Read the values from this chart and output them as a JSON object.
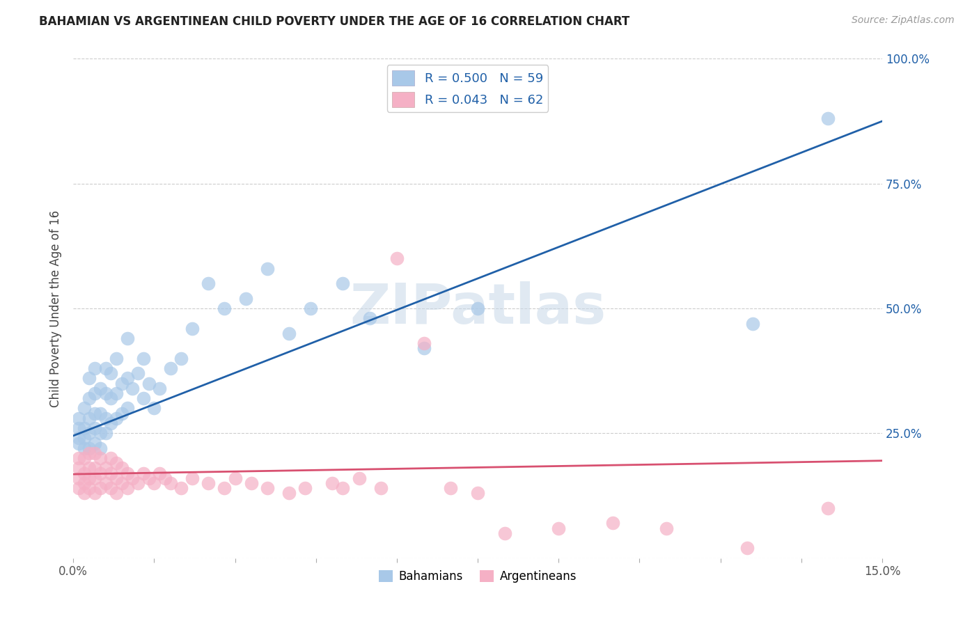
{
  "title": "BAHAMIAN VS ARGENTINEAN CHILD POVERTY UNDER THE AGE OF 16 CORRELATION CHART",
  "source": "Source: ZipAtlas.com",
  "ylabel": "Child Poverty Under the Age of 16",
  "xlim": [
    0.0,
    0.15
  ],
  "ylim": [
    0.0,
    1.0
  ],
  "xticks": [
    0.0,
    0.015,
    0.03,
    0.045,
    0.06,
    0.075,
    0.09,
    0.105,
    0.12,
    0.135,
    0.15
  ],
  "xtick_labels": [
    "0.0%",
    "",
    "",
    "",
    "",
    "",
    "",
    "",
    "",
    "",
    "15.0%"
  ],
  "ytick_vals": [
    0.0,
    0.25,
    0.5,
    0.75,
    1.0
  ],
  "ytick_labels_right": [
    "",
    "25.0%",
    "50.0%",
    "75.0%",
    "100.0%"
  ],
  "bahamian_color": "#a8c8e8",
  "argentinean_color": "#f5b0c5",
  "bahamian_line_color": "#2060a8",
  "argentinean_line_color": "#d85070",
  "watermark": "ZIPatlas",
  "bahamian_slope": 4.2,
  "bahamian_intercept": 0.245,
  "argentinean_slope": 0.18,
  "argentinean_intercept": 0.168,
  "blue_x": [
    0.001,
    0.001,
    0.001,
    0.001,
    0.002,
    0.002,
    0.002,
    0.002,
    0.003,
    0.003,
    0.003,
    0.003,
    0.003,
    0.004,
    0.004,
    0.004,
    0.004,
    0.004,
    0.005,
    0.005,
    0.005,
    0.005,
    0.006,
    0.006,
    0.006,
    0.006,
    0.007,
    0.007,
    0.007,
    0.008,
    0.008,
    0.008,
    0.009,
    0.009,
    0.01,
    0.01,
    0.01,
    0.011,
    0.012,
    0.013,
    0.013,
    0.014,
    0.015,
    0.016,
    0.018,
    0.02,
    0.022,
    0.025,
    0.028,
    0.032,
    0.036,
    0.04,
    0.044,
    0.05,
    0.055,
    0.065,
    0.075,
    0.126,
    0.14
  ],
  "blue_y": [
    0.23,
    0.24,
    0.26,
    0.28,
    0.22,
    0.24,
    0.26,
    0.3,
    0.22,
    0.25,
    0.28,
    0.32,
    0.36,
    0.23,
    0.26,
    0.29,
    0.33,
    0.38,
    0.22,
    0.25,
    0.29,
    0.34,
    0.25,
    0.28,
    0.33,
    0.38,
    0.27,
    0.32,
    0.37,
    0.28,
    0.33,
    0.4,
    0.29,
    0.35,
    0.3,
    0.36,
    0.44,
    0.34,
    0.37,
    0.32,
    0.4,
    0.35,
    0.3,
    0.34,
    0.38,
    0.4,
    0.46,
    0.55,
    0.5,
    0.52,
    0.58,
    0.45,
    0.5,
    0.55,
    0.48,
    0.42,
    0.5,
    0.47,
    0.88
  ],
  "pink_x": [
    0.001,
    0.001,
    0.001,
    0.001,
    0.002,
    0.002,
    0.002,
    0.002,
    0.003,
    0.003,
    0.003,
    0.003,
    0.004,
    0.004,
    0.004,
    0.004,
    0.005,
    0.005,
    0.005,
    0.006,
    0.006,
    0.007,
    0.007,
    0.007,
    0.008,
    0.008,
    0.008,
    0.009,
    0.009,
    0.01,
    0.01,
    0.011,
    0.012,
    0.013,
    0.014,
    0.015,
    0.016,
    0.017,
    0.018,
    0.02,
    0.022,
    0.025,
    0.028,
    0.03,
    0.033,
    0.036,
    0.04,
    0.043,
    0.048,
    0.05,
    0.053,
    0.057,
    0.06,
    0.065,
    0.07,
    0.075,
    0.08,
    0.09,
    0.1,
    0.11,
    0.125,
    0.14
  ],
  "pink_y": [
    0.14,
    0.16,
    0.18,
    0.2,
    0.13,
    0.15,
    0.17,
    0.2,
    0.14,
    0.16,
    0.18,
    0.21,
    0.13,
    0.16,
    0.18,
    0.21,
    0.14,
    0.17,
    0.2,
    0.15,
    0.18,
    0.14,
    0.17,
    0.2,
    0.13,
    0.16,
    0.19,
    0.15,
    0.18,
    0.14,
    0.17,
    0.16,
    0.15,
    0.17,
    0.16,
    0.15,
    0.17,
    0.16,
    0.15,
    0.14,
    0.16,
    0.15,
    0.14,
    0.16,
    0.15,
    0.14,
    0.13,
    0.14,
    0.15,
    0.14,
    0.16,
    0.14,
    0.6,
    0.43,
    0.14,
    0.13,
    0.05,
    0.06,
    0.07,
    0.06,
    0.02,
    0.1
  ]
}
